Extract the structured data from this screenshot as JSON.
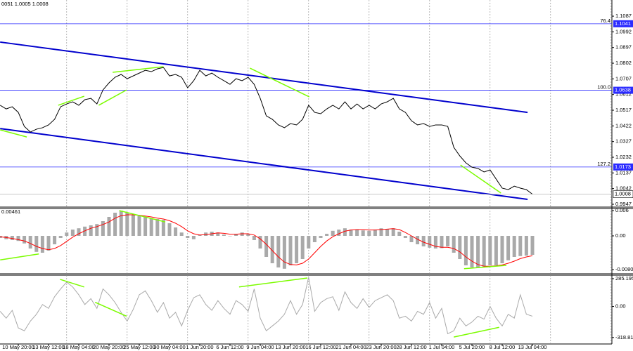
{
  "header": "0051 1.0005 1.0008",
  "chart_data": [
    {
      "type": "line",
      "color": "#000000",
      "categories": [
        null,
        null,
        null,
        "10 May 20:00",
        null,
        null,
        null,
        null,
        "13 May 12:00",
        null,
        null,
        null,
        null,
        "18 May 04:00",
        null,
        null,
        null,
        null,
        "20 May 20:00",
        null,
        null,
        null,
        null,
        "25 May 12:00",
        null,
        null,
        null,
        null,
        "30 May 04:00",
        null,
        null,
        null,
        null,
        "1 Jun 20:00",
        null,
        null,
        null,
        null,
        "6 Jun 12:00",
        null,
        null,
        null,
        null,
        "9 Jun 04:00",
        null,
        null,
        null,
        null,
        "13 Jun 20:00",
        null,
        null,
        null,
        null,
        "16 Jun 12:00",
        null,
        null,
        null,
        null,
        "21 Jun 04:00",
        null,
        null,
        null,
        null,
        "23 Jun 20:00",
        null,
        null,
        null,
        null,
        "28 Jun 12:00",
        null,
        null,
        null,
        null,
        "1 Jul 04:00",
        null,
        null,
        null,
        null,
        "5 Jul 20:00",
        null,
        null,
        null,
        null,
        "8 Jul 12:00",
        null,
        null,
        null,
        null,
        "13 Jul 04:00"
      ],
      "values": [
        1.0547,
        1.0525,
        1.0538,
        1.0504,
        1.0419,
        1.0385,
        1.0402,
        1.0411,
        1.0428,
        1.0462,
        1.0538,
        1.0555,
        1.0568,
        1.0547,
        1.0581,
        1.0589,
        1.0555,
        1.064,
        1.0683,
        1.0717,
        1.0734,
        1.0708,
        1.0725,
        1.0742,
        1.0759,
        1.0751,
        1.0768,
        1.0776,
        1.0725,
        1.0734,
        1.0717,
        1.0653,
        1.0696,
        1.0759,
        1.0725,
        1.0742,
        1.0717,
        1.0696,
        1.0674,
        1.0708,
        1.0696,
        1.0717,
        1.0674,
        1.0589,
        1.0483,
        1.0462,
        1.0428,
        1.0411,
        1.0436,
        1.0428,
        1.0462,
        1.0547,
        1.0504,
        1.0496,
        1.0525,
        1.0547,
        1.0525,
        1.0568,
        1.0525,
        1.0555,
        1.0525,
        1.0547,
        1.0525,
        1.0555,
        1.0568,
        1.0589,
        1.0525,
        1.0504,
        1.0453,
        1.0428,
        1.0436,
        1.0419,
        1.0428,
        1.0428,
        1.0419,
        1.0292,
        1.024,
        1.0198,
        1.0172,
        1.0164,
        1.0143,
        1.0155,
        1.01,
        1.0045,
        1.0036,
        1.0057,
        1.0045,
        1.0036,
        1.0008
      ],
      "ylim": [
        0.993,
        1.1185
      ],
      "yticks": [
        1.1087,
        1.0992,
        1.0897,
        1.0802,
        1.0707,
        1.0612,
        1.0517,
        1.0422,
        1.0327,
        1.0232,
        1.0137,
        1.0042,
        0.9947
      ],
      "levels": [
        {
          "label": "76.4",
          "value": 1.1041
        },
        {
          "label": "100.0",
          "value": 1.0638
        },
        {
          "label": "127.2",
          "value": 1.0173
        }
      ],
      "level_color": "#2b2bff",
      "channel": [
        {
          "x": [
            0,
            87.2
          ],
          "y": [
            1.093,
            1.0504
          ]
        },
        {
          "x": [
            0,
            87.2
          ],
          "y": [
            1.0406,
            0.9977
          ]
        }
      ],
      "channel_color": "#0000cd",
      "trendlines": [
        {
          "x": [
            0,
            4.4
          ],
          "y": [
            1.0398,
            1.0355
          ]
        },
        {
          "x": [
            9.6,
            13.9
          ],
          "y": [
            1.0547,
            1.0602
          ]
        },
        {
          "x": [
            16.3,
            20.9
          ],
          "y": [
            1.0547,
            1.064
          ]
        },
        {
          "x": [
            18.6,
            27
          ],
          "y": [
            1.0747,
            1.0781
          ]
        },
        {
          "x": [
            41.3,
            51.1
          ],
          "y": [
            1.0772,
            1.0598
          ]
        },
        {
          "x": [
            76.1,
            82.8
          ],
          "y": [
            1.0185,
            1.0015
          ]
        }
      ],
      "trend_color": "#7cfc00"
    },
    {
      "type": "bar",
      "label": "0.00461",
      "color": "#a9a9a9",
      "values": [
        -0.0005,
        -0.0008,
        -0.001,
        -0.0012,
        -0.0018,
        -0.003,
        -0.0038,
        -0.004,
        -0.0035,
        -0.002,
        -0.0005,
        0.0008,
        0.0015,
        0.0018,
        0.0022,
        0.0025,
        0.0028,
        0.0035,
        0.0045,
        0.0055,
        0.006,
        0.0055,
        0.005,
        0.0048,
        0.0045,
        0.0042,
        0.004,
        0.0038,
        0.003,
        0.002,
        0.0008,
        -0.0005,
        -0.0008,
        0.0002,
        0.0008,
        0.001,
        0.0008,
        0.0003,
        0,
        0.0005,
        0.0008,
        0.0005,
        -0.001,
        -0.003,
        -0.005,
        -0.0065,
        -0.0075,
        -0.0078,
        -0.007,
        -0.0065,
        -0.0055,
        -0.003,
        -0.0015,
        -0.0005,
        0.0005,
        0.0012,
        0.0015,
        0.0018,
        0.0015,
        0.0015,
        0.0013,
        0.0012,
        0.0015,
        0.0018,
        0.0016,
        0.0018,
        0.001,
        -0.0005,
        -0.0015,
        -0.002,
        -0.0025,
        -0.0028,
        -0.003,
        -0.0029,
        -0.0025,
        -0.004,
        -0.0055,
        -0.007,
        -0.0075,
        -0.0076,
        -0.0073,
        -0.007,
        -0.007,
        -0.0065,
        -0.0058,
        -0.005,
        -0.0048,
        -0.0047,
        -0.0045
      ],
      "line_values": [
        -0.0002,
        -0.0004,
        -0.0006,
        -0.0009,
        -0.0012,
        -0.0018,
        -0.0025,
        -0.003,
        -0.0033,
        -0.003,
        -0.0023,
        -0.0013,
        -0.0003,
        0.0005,
        0.0012,
        0.0018,
        0.0022,
        0.0027,
        0.0033,
        0.0042,
        0.0048,
        0.005,
        0.005,
        0.0049,
        0.0047,
        0.0045,
        0.0042,
        0.004,
        0.0036,
        0.003,
        0.0022,
        0.0012,
        0.0005,
        0.0002,
        0.0003,
        0.0005,
        0.0007,
        0.0006,
        0.0004,
        0.0004,
        0.0005,
        0.0005,
        0.0002,
        -0.0007,
        -0.002,
        -0.0035,
        -0.005,
        -0.0062,
        -0.0068,
        -0.0069,
        -0.0065,
        -0.0055,
        -0.004,
        -0.0025,
        -0.0012,
        -0.0002,
        0.0005,
        0.0011,
        0.0014,
        0.0015,
        0.0015,
        0.0014,
        0.0014,
        0.0015,
        0.0016,
        0.0017,
        0.0015,
        0.0008,
        0,
        -0.0008,
        -0.0015,
        -0.002,
        -0.0025,
        -0.0027,
        -0.0027,
        -0.003,
        -0.0038,
        -0.005,
        -0.006,
        -0.0068,
        -0.0072,
        -0.0072,
        -0.0071,
        -0.0069,
        -0.0065,
        -0.006,
        -0.0054,
        -0.005,
        -0.0047
      ],
      "line_color": "#ff0000",
      "ylim": [
        -0.009,
        0.0065
      ],
      "yticks": [
        0.006,
        {
          "value": 0,
          "label": "0.00"
        },
        -0.00802
      ],
      "trendlines": [
        {
          "x": [
            0,
            6.4
          ],
          "y": [
            -0.0057,
            -0.0043
          ]
        },
        {
          "x": [
            19.7,
            27.3
          ],
          "y": [
            0.006,
            0.0033
          ]
        },
        {
          "x": [
            76.7,
            83.7
          ],
          "y": [
            -0.0078,
            -0.007
          ]
        }
      ],
      "trend_color": "#7cfc00"
    },
    {
      "type": "line",
      "color": "#a9a9a9",
      "values": [
        -50,
        -120,
        -40,
        -220,
        -250,
        -150,
        -80,
        20,
        -20,
        100,
        180,
        250,
        200,
        120,
        20,
        80,
        -20,
        180,
        120,
        40,
        -60,
        -150,
        -30,
        120,
        160,
        60,
        -60,
        40,
        -120,
        -60,
        -200,
        -40,
        90,
        120,
        20,
        -40,
        60,
        -20,
        -80,
        60,
        20,
        -50,
        180,
        -120,
        -250,
        -200,
        -150,
        -80,
        60,
        -80,
        20,
        300,
        -50,
        40,
        80,
        100,
        -40,
        150,
        40,
        -20,
        80,
        -10,
        60,
        90,
        120,
        60,
        -120,
        -100,
        -150,
        -50,
        -80,
        40,
        -120,
        -20,
        -280,
        -250,
        -120,
        -200,
        -160,
        -100,
        -130,
        0,
        -120,
        -200,
        -80,
        -120,
        120,
        -80,
        -100
      ],
      "ylim": [
        -385,
        321
      ],
      "yticks": [
        285.1954,
        {
          "value": 0,
          "label": "0.00"
        },
        -318.8116
      ],
      "trendlines": [
        {
          "x": [
            9.9,
            13.9
          ],
          "y": [
            278,
            200
          ]
        },
        {
          "x": [
            15.7,
            20.9
          ],
          "y": [
            43,
            -100
          ]
        },
        {
          "x": [
            39.5,
            50.8
          ],
          "y": [
            200,
            292
          ]
        },
        {
          "x": [
            75,
            82.5
          ],
          "y": [
            -314,
            -214
          ]
        }
      ],
      "trend_color": "#7cfc00"
    }
  ]
}
